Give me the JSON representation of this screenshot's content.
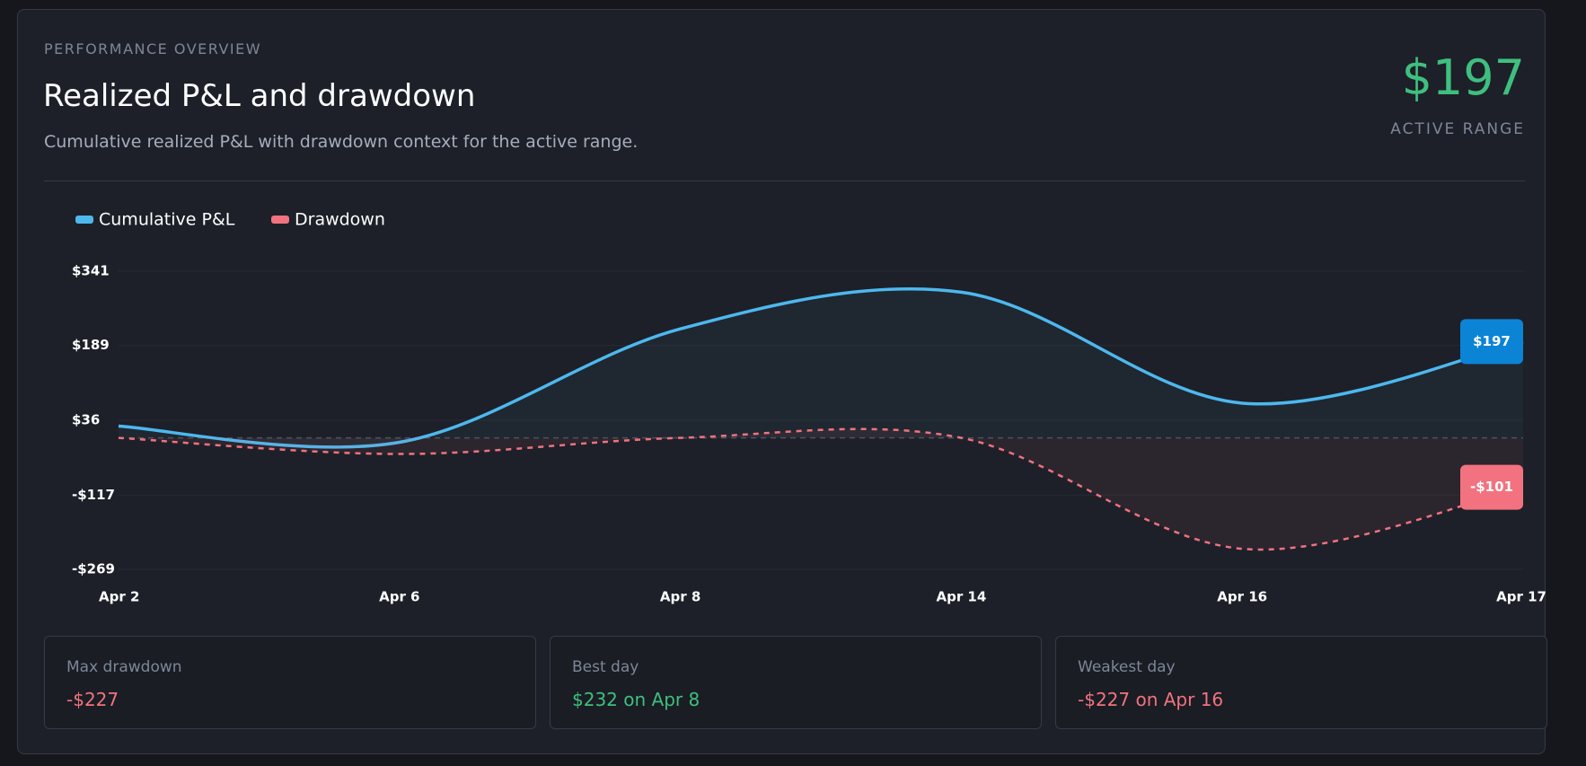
{
  "header": {
    "eyebrow": "PERFORMANCE OVERVIEW",
    "title": "Realized P&L and drawdown",
    "subtitle": "Cumulative realized P&L with drawdown context for the active range.",
    "headline_value": "$197",
    "headline_label": "ACTIVE RANGE"
  },
  "chart_data": {
    "type": "line",
    "categories": [
      "Apr 2",
      "Apr 6",
      "Apr 8",
      "Apr 14",
      "Apr 16",
      "Apr 17"
    ],
    "series": [
      {
        "name": "Cumulative P&L",
        "color": "#4db8ee",
        "values": [
          24,
          -9,
          223,
          298,
          71,
          197
        ],
        "value_labels": [
          null,
          null,
          null,
          null,
          null,
          "$197"
        ]
      },
      {
        "name": "Drawdown",
        "color": "#f2727f",
        "values": [
          0,
          -33,
          0,
          0,
          -227,
          -101
        ],
        "value_labels": [
          null,
          null,
          null,
          null,
          null,
          "-$101"
        ]
      }
    ],
    "ylim": [
      -269,
      341
    ],
    "yticks": [
      {
        "value": 341,
        "label": "$341"
      },
      {
        "value": 189,
        "label": "$189"
      },
      {
        "value": 36,
        "label": "$36"
      },
      {
        "value": -117,
        "label": "-$117"
      },
      {
        "value": -269,
        "label": "-$269"
      }
    ],
    "grid": true,
    "legend": "top-left"
  },
  "stats": [
    {
      "label": "Max drawdown",
      "value": "-$227"
    },
    {
      "label": "Best day",
      "value": "$232 on Apr 8"
    },
    {
      "label": "Weakest day",
      "value": "-$227 on Apr 16"
    }
  ]
}
